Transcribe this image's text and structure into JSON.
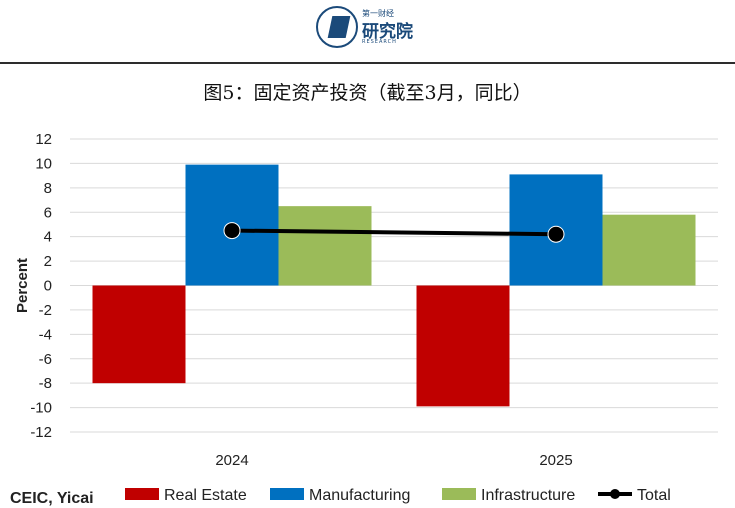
{
  "header": {
    "logo_top": "第一财经",
    "logo_main": "研究院",
    "logo_sub": "RESEARCH"
  },
  "chart_data": {
    "type": "bar",
    "title": "图5：固定资产投资（截至3月，同比）",
    "ylabel": "Percent",
    "xlabel": "",
    "categories": [
      "2024",
      "2025"
    ],
    "ylim": [
      -12,
      12
    ],
    "yticks": [
      12,
      10,
      8,
      6,
      4,
      2,
      0,
      -2,
      -4,
      -6,
      -8,
      -10,
      -12
    ],
    "grid": true,
    "legend_position": "bottom",
    "source": "CEIC, Yicai",
    "series": [
      {
        "name": "Real Estate",
        "type": "bar",
        "color": "#c00000",
        "values": [
          -8.0,
          -9.9
        ]
      },
      {
        "name": "Manufacturing",
        "type": "bar",
        "color": "#0070c0",
        "values": [
          9.9,
          9.1
        ]
      },
      {
        "name": "Infrastructure",
        "type": "bar",
        "color": "#9bbb59",
        "values": [
          6.5,
          5.8
        ]
      },
      {
        "name": "Total",
        "type": "line",
        "color": "#000000",
        "values": [
          4.5,
          4.2
        ]
      }
    ]
  }
}
